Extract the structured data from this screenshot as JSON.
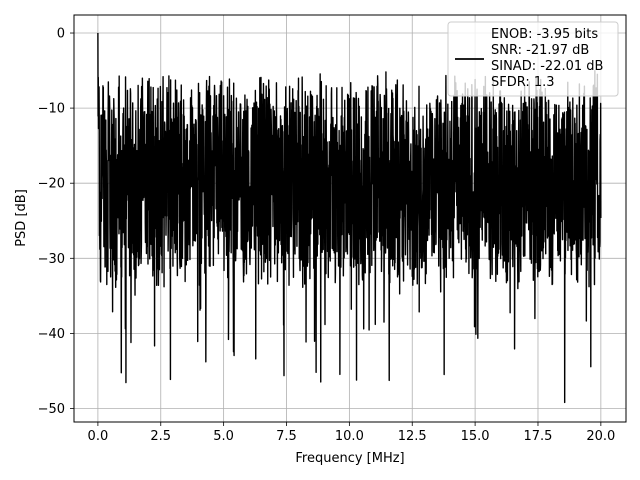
{
  "chart_data": {
    "type": "line",
    "xlabel": "Frequency [MHz]",
    "ylabel": "PSD [dB]",
    "xlim": [
      -0.95,
      21.0
    ],
    "ylim": [
      -51.8,
      2.4
    ],
    "xticks": [
      0.0,
      2.5,
      5.0,
      7.5,
      10.0,
      12.5,
      15.0,
      17.5,
      20.0
    ],
    "xtick_labels": [
      "0.0",
      "2.5",
      "5.0",
      "7.5",
      "10.0",
      "12.5",
      "15.0",
      "17.5",
      "20.0"
    ],
    "yticks": [
      0,
      -10,
      -20,
      -30,
      -40,
      -50
    ],
    "ytick_labels": [
      "0",
      "−10",
      "−20",
      "−30",
      "−40",
      "−50"
    ],
    "grid": true,
    "legend_position": "top-right",
    "line_color": "#000000",
    "series": [
      {
        "name": "",
        "x_range": [
          0.0,
          20.0
        ],
        "typical_band_db": [
          -32,
          -8
        ],
        "peak_db": 0.0,
        "minimum_db": -49.2
      }
    ],
    "legend_lines": [
      "ENOB: -3.95 bits",
      "SNR: -21.97 dB",
      "SINAD: -22.01 dB",
      "SFDR: 1.3"
    ]
  }
}
